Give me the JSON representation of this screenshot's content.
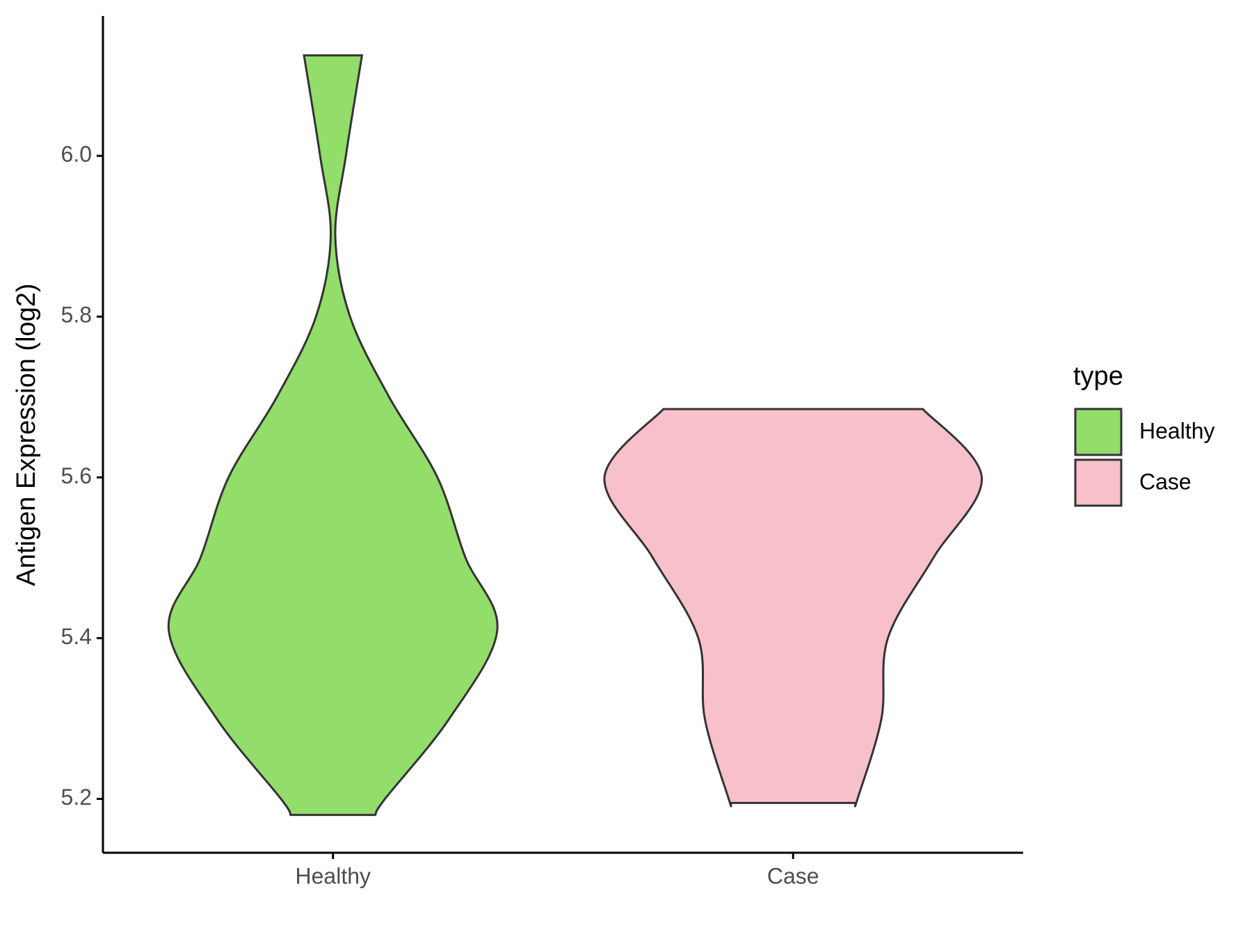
{
  "chart_data": {
    "type": "violin",
    "ylabel": "Antigen Expression (log2)",
    "categories": [
      "Healthy",
      "Case"
    ],
    "series": [
      {
        "name": "Healthy",
        "color": "#93dd6a",
        "y": [
          6.125,
          6.0,
          5.9,
          5.8,
          5.7,
          5.6,
          5.5,
          5.41,
          5.3,
          5.2,
          5.18
        ],
        "widths": [
          0.063,
          0.028,
          0.005,
          0.037,
          0.122,
          0.227,
          0.288,
          0.357,
          0.253,
          0.113,
          0.092
        ]
      },
      {
        "name": "Case",
        "color": "#f8c0cb",
        "y": [
          5.685,
          5.6,
          5.5,
          5.4,
          5.3,
          5.2,
          5.195
        ],
        "widths": [
          0.282,
          0.41,
          0.305,
          0.206,
          0.192,
          0.14,
          0.136
        ]
      }
    ],
    "ylim": [
      5.133,
      6.174
    ],
    "yticks": [
      {
        "value": 5.2,
        "label": "5.2"
      },
      {
        "value": 5.4,
        "label": "5.4"
      },
      {
        "value": 5.6,
        "label": "5.6"
      },
      {
        "value": 5.8,
        "label": "5.8"
      },
      {
        "value": 6.0,
        "label": "6.0"
      }
    ],
    "legend_title": "type",
    "legend": "right"
  }
}
